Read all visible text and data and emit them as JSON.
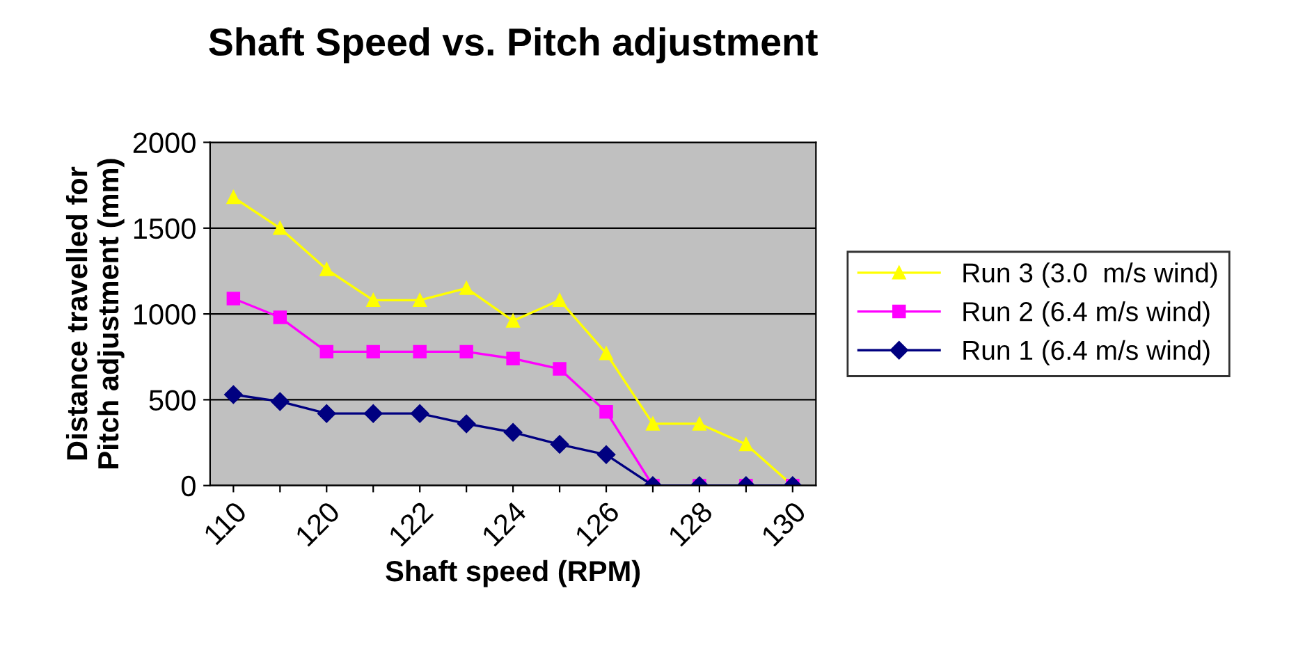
{
  "chart_data": {
    "type": "line",
    "title": "Shaft Speed vs. Pitch adjustment",
    "xlabel": "Shaft speed (RPM)",
    "ylabel": "Distance travelled for\nPitch adjustment (mm)",
    "categories": [
      "110",
      null,
      "120",
      null,
      "122",
      null,
      "124",
      null,
      "126",
      null,
      "128",
      null,
      "130"
    ],
    "series": [
      {
        "name": "Run 3 (3.0  m/s wind)",
        "color": "#ffff00",
        "marker": "triangle",
        "values": [
          1680,
          1500,
          1260,
          1080,
          1080,
          1150,
          960,
          1080,
          770,
          360,
          360,
          240,
          0
        ]
      },
      {
        "name": "Run 2 (6.4 m/s wind)",
        "color": "#ff00ff",
        "marker": "square",
        "values": [
          1090,
          980,
          780,
          780,
          780,
          780,
          740,
          680,
          430,
          0,
          0,
          0,
          0
        ]
      },
      {
        "name": "Run 1 (6.4 m/s wind)",
        "color": "#000080",
        "marker": "diamond",
        "values": [
          530,
          490,
          420,
          420,
          420,
          360,
          310,
          240,
          180,
          0,
          0,
          0,
          0
        ]
      }
    ],
    "ylim": [
      0,
      2000
    ],
    "yticks": [
      0,
      500,
      1000,
      1500,
      2000
    ],
    "grid": "y",
    "legend": "right"
  }
}
